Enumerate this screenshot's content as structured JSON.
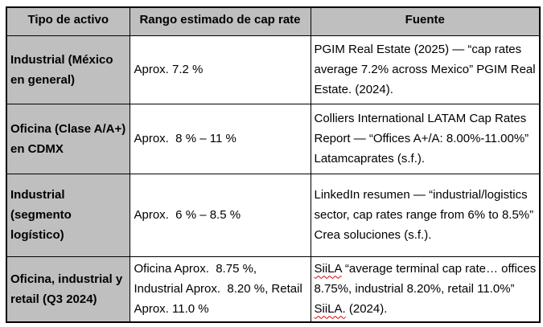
{
  "colors": {
    "header_bg": "#bfbfbf",
    "border": "#000000",
    "spellcheck_underline": "#e00000",
    "text": "#000000",
    "cell_bg": "#ffffff"
  },
  "table": {
    "headers": [
      "Tipo de activo",
      "Rango estimado de cap rate",
      "Fuente"
    ],
    "rows": [
      {
        "tipo": "Industrial (México en general)",
        "rango": "Aprox. 7.2 %",
        "fuente": [
          {
            "text": "PGIM Real Estate (2025) — “cap rates average 7.2% across Mexico” PGIM Real Estate. (2024).",
            "misspelled": false
          }
        ]
      },
      {
        "tipo": "Oficina (Clase A/A+) en CDMX",
        "rango": "Aprox.  8 % – 11 %",
        "fuente": [
          {
            "text": "Colliers International LATAM Cap Rates Report — “Offices A+/A: 8.00%-11.00%”  Latamcaprates (s.f.).",
            "misspelled": false
          }
        ]
      },
      {
        "tipo": "Industrial (segmento logístico)",
        "rango": "Aprox.  6 % – 8.5 %",
        "fuente": [
          {
            "text": "LinkedIn resumen — “industrial/logistics sector, cap rates range from 6% to 8.5%” Crea soluciones (s.f.).",
            "misspelled": false
          }
        ]
      },
      {
        "tipo": "Oficina, industrial y retail (Q3 2024)",
        "rango": "Oficina Aprox.  8.75 %, Industrial Aprox.  8.20 %, Retail Aprox. 11.0 %",
        "fuente": [
          {
            "text": "SiiLA",
            "misspelled": true
          },
          {
            "text": " “average terminal cap rate… offices 8.75%, industrial 8.20%, retail 11.0%”  ",
            "misspelled": false
          },
          {
            "text": "SiiLA.",
            "misspelled": true
          },
          {
            "text": " (2024).",
            "misspelled": false
          }
        ]
      }
    ]
  }
}
